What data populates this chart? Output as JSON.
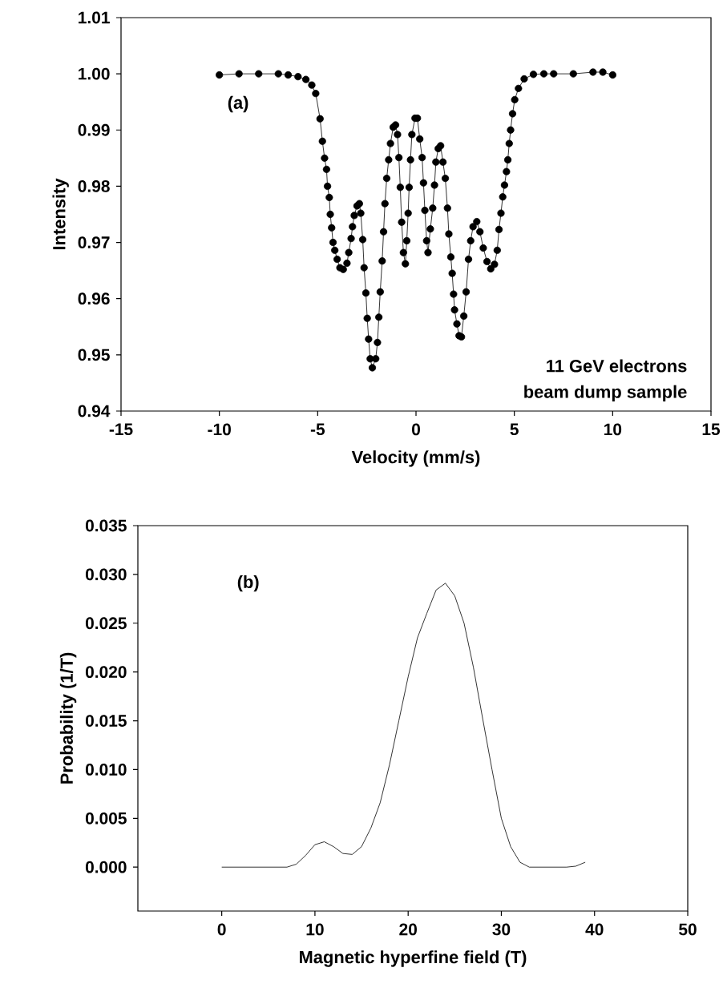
{
  "chart_data": [
    {
      "type": "line",
      "xlabel": "Velocity (mm/s)",
      "ylabel": "Intensity",
      "marker": "circle",
      "line_style": "solid",
      "annotations": [
        "(a)",
        "11 GeV electrons",
        "beam dump sample"
      ],
      "xlim": [
        -15,
        15
      ],
      "xticks": [
        -15,
        -10,
        -5,
        0,
        5,
        10,
        15
      ],
      "ylim": [
        0.94,
        1.01
      ],
      "yticks": [
        0.94,
        0.95,
        0.96,
        0.97,
        0.98,
        0.99,
        {
          "value": 1.0,
          "label": "1.00"
        },
        1.01
      ],
      "series": [
        {
          "color": "#000000",
          "x": [
            -10,
            -9,
            -8,
            -7,
            -6.5,
            -6,
            -5.6,
            -5.3,
            -5.1,
            -4.88,
            -4.76,
            -4.65,
            -4.55,
            -4.5,
            -4.41,
            -4.36,
            -4.29,
            -4.22,
            -4.13,
            -4.01,
            -3.87,
            -3.7,
            -3.51,
            -3.42,
            -3.3,
            -3.23,
            -3.14,
            -3.0,
            -2.88,
            -2.81,
            -2.71,
            -2.64,
            -2.55,
            -2.48,
            -2.41,
            -2.33,
            -2.22,
            -2.05,
            -1.96,
            -1.89,
            -1.82,
            -1.72,
            -1.65,
            -1.58,
            -1.49,
            -1.39,
            -1.3,
            -1.16,
            -1.04,
            -0.94,
            -0.87,
            -0.8,
            -0.73,
            -0.64,
            -0.54,
            -0.47,
            -0.4,
            -0.35,
            -0.28,
            -0.21,
            -0.05,
            0.07,
            0.19,
            0.31,
            0.38,
            0.45,
            0.54,
            0.61,
            0.73,
            0.85,
            0.94,
            1.01,
            1.13,
            1.25,
            1.37,
            1.49,
            1.6,
            1.67,
            1.77,
            1.84,
            1.91,
            1.96,
            2.08,
            2.19,
            2.31,
            2.43,
            2.55,
            2.67,
            2.78,
            2.9,
            3.09,
            3.25,
            3.42,
            3.61,
            3.8,
            3.99,
            4.13,
            4.22,
            4.32,
            4.41,
            4.5,
            4.6,
            4.67,
            4.74,
            4.81,
            4.91,
            5.02,
            5.21,
            5.5,
            5.97,
            6.5,
            7,
            8,
            9,
            9.5,
            10
          ],
          "values": [
            0.9998,
            1.0,
            1.0,
            1.0,
            0.9998,
            0.9995,
            0.999,
            0.998,
            0.9965,
            0.992,
            0.988,
            0.985,
            0.983,
            0.98,
            0.978,
            0.975,
            0.9726,
            0.97,
            0.9686,
            0.967,
            0.9655,
            0.9652,
            0.9663,
            0.9682,
            0.9707,
            0.9728,
            0.9748,
            0.9765,
            0.9769,
            0.9752,
            0.9705,
            0.9655,
            0.961,
            0.9565,
            0.9528,
            0.9493,
            0.9477,
            0.9493,
            0.9522,
            0.9567,
            0.9612,
            0.9667,
            0.9719,
            0.9769,
            0.9814,
            0.9847,
            0.9876,
            0.9905,
            0.9909,
            0.9892,
            0.9851,
            0.9798,
            0.9736,
            0.9682,
            0.9662,
            0.9703,
            0.9752,
            0.9798,
            0.9847,
            0.9892,
            0.9921,
            0.9921,
            0.9884,
            0.9851,
            0.9806,
            0.9757,
            0.9703,
            0.9682,
            0.9724,
            0.9761,
            0.9802,
            0.9843,
            0.9867,
            0.9872,
            0.9843,
            0.9814,
            0.9761,
            0.9715,
            0.9674,
            0.9645,
            0.9608,
            0.958,
            0.9555,
            0.9534,
            0.9532,
            0.9569,
            0.9612,
            0.967,
            0.9703,
            0.9728,
            0.9737,
            0.9719,
            0.969,
            0.9666,
            0.9653,
            0.9661,
            0.9686,
            0.9723,
            0.9752,
            0.9781,
            0.9802,
            0.9826,
            0.9847,
            0.9876,
            0.99,
            0.9929,
            0.9954,
            0.9974,
            0.9991,
            0.9999,
            1.0,
            1.0,
            1.0,
            1.0003,
            1.0003,
            0.9998
          ]
        }
      ]
    },
    {
      "type": "line",
      "xlabel": "Magnetic hyperfine field (T)",
      "ylabel": "Probability (1/T)",
      "marker": "none",
      "line_style": "solid",
      "annotations": [
        "(b)"
      ],
      "xlim": [
        -9,
        50
      ],
      "xticks": [
        0,
        10,
        20,
        30,
        40,
        50
      ],
      "ylim": [
        -0.0045,
        0.035
      ],
      "yticks": [
        {
          "value": 0,
          "label": "0.000"
        },
        {
          "value": 0.005,
          "label": "0.005"
        },
        {
          "value": 0.01,
          "label": "0.010"
        },
        {
          "value": 0.015,
          "label": "0.015"
        },
        {
          "value": 0.02,
          "label": "0.020"
        },
        {
          "value": 0.025,
          "label": "0.025"
        },
        {
          "value": 0.03,
          "label": "0.030"
        },
        {
          "value": 0.035,
          "label": "0.035"
        }
      ],
      "series": [
        {
          "color": "#000000",
          "x": [
            0,
            7,
            8,
            9,
            10,
            11,
            12,
            13,
            14,
            15,
            16,
            17,
            18,
            19,
            20,
            21,
            22,
            23,
            24,
            25,
            26,
            27,
            28,
            29,
            30,
            31,
            32,
            33,
            37,
            38,
            39
          ],
          "values": [
            0,
            0,
            0.0003,
            0.0012,
            0.0023,
            0.0026,
            0.0021,
            0.0014,
            0.0013,
            0.0021,
            0.004,
            0.0066,
            0.0105,
            0.015,
            0.0195,
            0.0235,
            0.026,
            0.0284,
            0.0291,
            0.0278,
            0.025,
            0.0205,
            0.0152,
            0.01,
            0.005,
            0.0021,
            0.0005,
            0,
            0,
            0.0001,
            0.0005
          ]
        }
      ]
    }
  ]
}
